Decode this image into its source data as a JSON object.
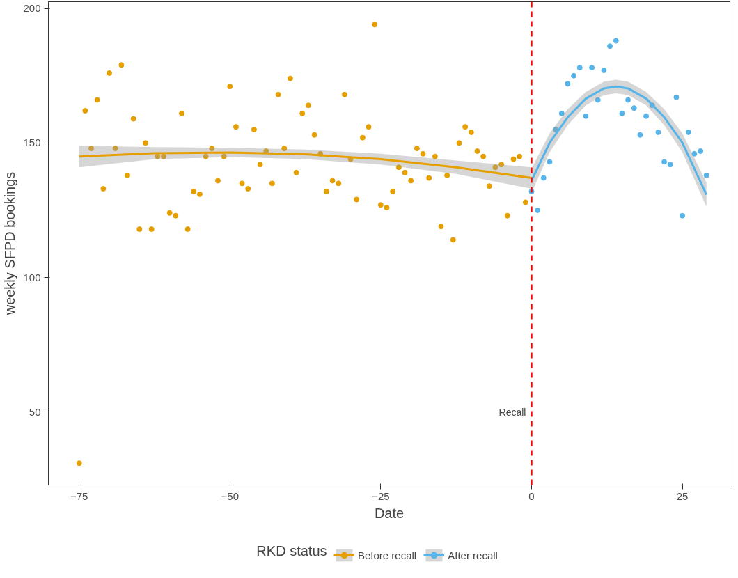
{
  "chart_data": {
    "type": "scatter",
    "xlabel": "Date",
    "ylabel": "weekly SFPD bookings",
    "legend_title": "RKD status",
    "xlim": [
      -80.1,
      32.9
    ],
    "ylim": [
      22.9,
      202.5
    ],
    "xticks": [
      -75,
      -50,
      -25,
      0,
      25
    ],
    "yticks": [
      50,
      100,
      150,
      200
    ],
    "grid": false,
    "legend": "bottom",
    "marker": "circle",
    "series": [
      {
        "name": "Before recall",
        "color": "#e69f00",
        "x": [
          -75,
          -74,
          -73,
          -72,
          -71,
          -70,
          -69,
          -68,
          -67,
          -66,
          -65,
          -64,
          -63,
          -62,
          -61,
          -60,
          -59,
          -58,
          -57,
          -56,
          -55,
          -54,
          -53,
          -52,
          -51,
          -50,
          -49,
          -48,
          -47,
          -46,
          -45,
          -44,
          -43,
          -42,
          -41,
          -40,
          -39,
          -38,
          -37,
          -36,
          -35,
          -34,
          -33,
          -32,
          -31,
          -30,
          -29,
          -28,
          -27,
          -26,
          -25,
          -24,
          -23,
          -22,
          -21,
          -20,
          -19,
          -18,
          -17,
          -16,
          -15,
          -14,
          -13,
          -12,
          -11,
          -10,
          -9,
          -8,
          -7,
          -6,
          -5,
          -4,
          -3,
          -2,
          -1
        ],
        "values": [
          31,
          162,
          148,
          166,
          133,
          176,
          148,
          179,
          138,
          159,
          118,
          150,
          118,
          145,
          145,
          124,
          123,
          161,
          118,
          132,
          131,
          145,
          148,
          136,
          145,
          171,
          156,
          135,
          133,
          155,
          142,
          147,
          135,
          168,
          148,
          174,
          139,
          161,
          164,
          153,
          146,
          132,
          136,
          135,
          168,
          144,
          129,
          152,
          156,
          194,
          127,
          126,
          132,
          141,
          139,
          136,
          148,
          146,
          137,
          145,
          119,
          138,
          114,
          150,
          156,
          154,
          147,
          145,
          134,
          141,
          142,
          123,
          144,
          145,
          128
        ]
      },
      {
        "type": "line",
        "marker": "none",
        "color": "#e69f00",
        "x": [
          -75,
          -62.5,
          -50,
          -37.5,
          -25,
          -12.5,
          0
        ],
        "values": [
          145,
          146.2,
          146.5,
          145.8,
          144,
          141,
          137
        ],
        "lower": [
          141,
          144,
          144.8,
          144,
          142,
          138.5,
          133
        ],
        "upper": [
          149,
          148.5,
          148.2,
          147.6,
          146,
          143.5,
          141
        ]
      },
      {
        "name": "After recall",
        "color": "#56b4e9",
        "x": [
          0,
          1,
          2,
          3,
          4,
          5,
          6,
          7,
          8,
          9,
          10,
          11,
          12,
          13,
          14,
          15,
          16,
          17,
          18,
          19,
          20,
          21,
          22,
          23,
          24,
          25,
          26,
          27,
          28,
          29
        ],
        "values": [
          132,
          125,
          137,
          143,
          155,
          161,
          172,
          175,
          178,
          160,
          178,
          166,
          177,
          186,
          188,
          161,
          166,
          163,
          153,
          160,
          164,
          154,
          143,
          142,
          167,
          123,
          154,
          146,
          147,
          138
        ]
      },
      {
        "type": "line",
        "marker": "none",
        "color": "#56b4e9",
        "x": [
          0,
          3,
          6,
          9,
          12,
          14,
          16,
          19,
          22,
          25,
          29
        ],
        "values": [
          136,
          150.1,
          159.6,
          166.5,
          170.3,
          171,
          170.3,
          166.5,
          159.6,
          150.1,
          130.8
        ],
        "lower": [
          131.5,
          146.6,
          156.6,
          164,
          167.8,
          168.5,
          167.8,
          164,
          156.6,
          146.6,
          126.3
        ],
        "upper": [
          140.5,
          153.6,
          162.6,
          169,
          172.8,
          173.5,
          172.8,
          169,
          162.6,
          153.6,
          135.3
        ]
      }
    ],
    "ref_lines": [
      {
        "axis": "x",
        "value": 0,
        "label": "Recall",
        "color": "#ff0000",
        "line_style": "dashed"
      }
    ]
  }
}
